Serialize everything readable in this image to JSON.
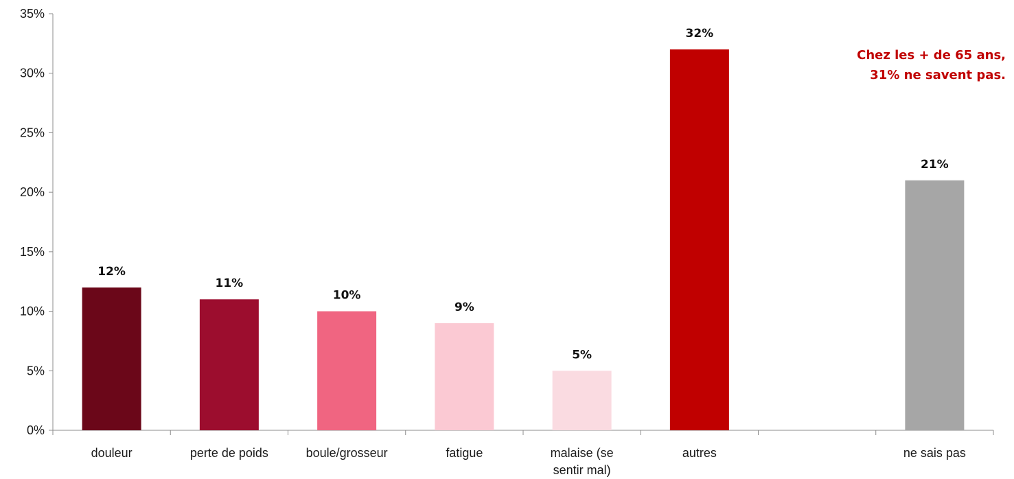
{
  "chart_data": {
    "type": "bar",
    "categories": [
      [
        "douleur"
      ],
      [
        "perte de poids"
      ],
      [
        "boule/grosseur"
      ],
      [
        "fatigue"
      ],
      [
        "malaise (se",
        "sentir mal)"
      ],
      [
        "autres"
      ],
      [
        ""
      ],
      [
        "ne sais pas"
      ]
    ],
    "values": [
      12,
      11,
      10,
      9,
      5,
      32,
      null,
      21
    ],
    "value_labels": [
      "12%",
      "11%",
      "10%",
      "9%",
      "5%",
      "32%",
      "",
      "21%"
    ],
    "colors": [
      "#6b0719",
      "#9c0d2e",
      "#f06581",
      "#fbc9d3",
      "#fadbe1",
      "#c00000",
      "#ffffff",
      "#a6a6a6"
    ],
    "ylim": [
      0,
      35
    ],
    "yticks": [
      0,
      5,
      10,
      15,
      20,
      25,
      30,
      35
    ],
    "ytick_labels": [
      "0%",
      "5%",
      "10%",
      "15%",
      "20%",
      "25%",
      "30%",
      "35%"
    ],
    "grid": false,
    "title": "",
    "xlabel": "",
    "ylabel": ""
  },
  "annotation": {
    "line1": "Chez les + de 65 ans,",
    "line2": "31% ne savent pas."
  }
}
